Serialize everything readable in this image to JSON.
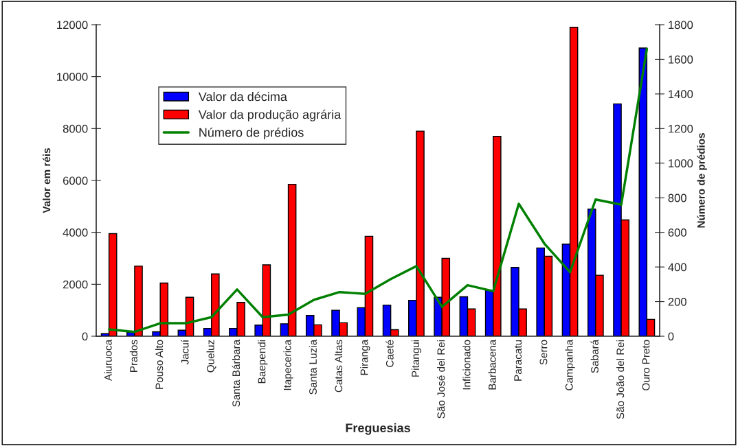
{
  "chart_data": {
    "type": "bar",
    "xlabel": "Freguesias",
    "ylabel": "Valor em réis",
    "y2label": "Número de prédios",
    "categories": [
      "Aiuruoca",
      "Prados",
      "Pouso Alto",
      "Jacuí",
      "Queluz",
      "Santa Bárbara",
      "Baependi",
      "Itapecerica",
      "Santa Luzia",
      "Catas Altas",
      "Piranga",
      "Caeté",
      "Pitangui",
      "São José del Rei",
      "Inficionado",
      "Barbacena",
      "Paracatu",
      "Serro",
      "Campanha",
      "Sabará",
      "São João del Rei",
      "Ouro Preto"
    ],
    "series": [
      {
        "name": "Valor da décima",
        "color": "#0000ff",
        "values": [
          100,
          150,
          170,
          230,
          300,
          300,
          430,
          480,
          800,
          1000,
          1100,
          1200,
          1380,
          1500,
          1520,
          1760,
          2650,
          3400,
          3550,
          4900,
          8950,
          11100
        ]
      },
      {
        "name": "Valor da produção agrária",
        "color": "#ff0000",
        "values": [
          3950,
          2700,
          2050,
          1500,
          2400,
          1300,
          2750,
          5850,
          440,
          520,
          3850,
          250,
          7900,
          3000,
          1050,
          7700,
          1050,
          3080,
          11900,
          2350,
          4480,
          650
        ]
      },
      {
        "name": "Número de prédios",
        "type": "line",
        "axis": "y2",
        "color": "#008000",
        "values": [
          40,
          25,
          75,
          75,
          110,
          270,
          110,
          125,
          210,
          255,
          245,
          330,
          405,
          170,
          295,
          260,
          765,
          535,
          370,
          790,
          760,
          1660
        ]
      }
    ],
    "ylim": [
      0,
      12000
    ],
    "yticks": [
      0,
      2000,
      4000,
      6000,
      8000,
      10000,
      12000
    ],
    "y2lim": [
      0,
      1800
    ],
    "y2ticks": [
      0,
      200,
      400,
      600,
      800,
      1000,
      1200,
      1400,
      1600,
      1800
    ],
    "grid": false,
    "legend": "top left"
  }
}
